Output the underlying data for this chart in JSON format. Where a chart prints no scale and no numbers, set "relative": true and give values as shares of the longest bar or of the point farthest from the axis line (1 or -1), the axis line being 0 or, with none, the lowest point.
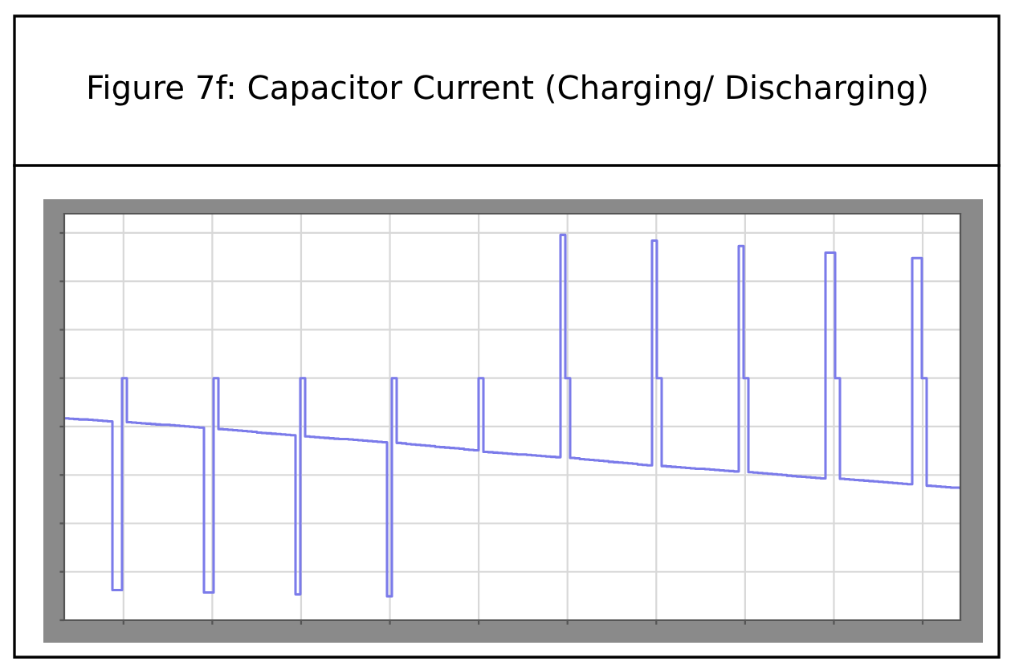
{
  "chart_data": {
    "type": "step",
    "title": "Figure 7f: Capacitor Current (Charging/ Discharging)",
    "relative": true,
    "grid": true,
    "line_style": "solid",
    "marker": "none",
    "categories": [
      null,
      null,
      null,
      null,
      null,
      null,
      null,
      null,
      null,
      null,
      null,
      null,
      null,
      null,
      null,
      null,
      null,
      null,
      null,
      null,
      null,
      null,
      null,
      null,
      null,
      null,
      null,
      null,
      null,
      null,
      null,
      null,
      null,
      null,
      null,
      null,
      null,
      null,
      null,
      null,
      null,
      null,
      null,
      null,
      null,
      null,
      null,
      null,
      null,
      null,
      null,
      null,
      null,
      null,
      null,
      null,
      null,
      null,
      null,
      null,
      null,
      null,
      null,
      null,
      null,
      null,
      null,
      null,
      null,
      null,
      null,
      null,
      null,
      null,
      null,
      null,
      null,
      null,
      null,
      null,
      null,
      null,
      null,
      null,
      null,
      null,
      null,
      null,
      null,
      null,
      null,
      null,
      null,
      null,
      null,
      null,
      null,
      null,
      null,
      null,
      null,
      null,
      null,
      null,
      null,
      null,
      null,
      null,
      null,
      null,
      null,
      null,
      null,
      null,
      null,
      null,
      null,
      null,
      null,
      null,
      null,
      null,
      null,
      null,
      null,
      null,
      null,
      null,
      null,
      null,
      null,
      null,
      null,
      null,
      null,
      null,
      null,
      null,
      null,
      null,
      null,
      null,
      null,
      null,
      null,
      null,
      null,
      null,
      null,
      null,
      null,
      null,
      null,
      null,
      null,
      null,
      null,
      null,
      null,
      null,
      null,
      null,
      null,
      null,
      null,
      null,
      null,
      null,
      null,
      null,
      null,
      null,
      null,
      null,
      null,
      null,
      null,
      null,
      null,
      null,
      null,
      null,
      null,
      null,
      null,
      null,
      null
    ],
    "series": [
      {
        "color": "#7b7bea",
        "values": [
          0.524,
          0.523,
          0.522,
          0.521,
          0.521,
          0.52,
          0.519,
          0.518,
          0.517,
          0.516,
          0.078,
          0.078,
          0.628,
          0.514,
          0.513,
          0.512,
          0.511,
          0.51,
          0.509,
          0.508,
          0.507,
          0.507,
          0.506,
          0.505,
          0.504,
          0.503,
          0.502,
          0.501,
          0.5,
          0.072,
          0.072,
          0.628,
          0.496,
          0.495,
          0.494,
          0.493,
          0.492,
          0.491,
          0.49,
          0.489,
          0.487,
          0.486,
          0.485,
          0.484,
          0.483,
          0.482,
          0.481,
          0.48,
          0.067,
          0.628,
          0.477,
          0.476,
          0.475,
          0.474,
          0.473,
          0.472,
          0.471,
          0.47,
          0.47,
          0.469,
          0.468,
          0.467,
          0.466,
          0.465,
          0.464,
          0.463,
          0.462,
          0.062,
          0.628,
          0.46,
          0.459,
          0.457,
          0.456,
          0.455,
          0.454,
          0.453,
          0.452,
          0.45,
          0.449,
          0.448,
          0.447,
          0.446,
          0.445,
          0.443,
          0.442,
          0.441,
          0.628,
          0.437,
          0.436,
          0.435,
          0.434,
          0.433,
          0.432,
          0.431,
          0.43,
          0.43,
          0.429,
          0.428,
          0.427,
          0.426,
          0.425,
          0.424,
          0.423,
          1.0,
          0.628,
          0.421,
          0.42,
          0.418,
          0.417,
          0.416,
          0.415,
          0.414,
          0.413,
          0.411,
          0.41,
          0.409,
          0.408,
          0.407,
          0.406,
          0.404,
          0.403,
          0.402,
          0.985,
          0.628,
          0.4,
          0.399,
          0.398,
          0.397,
          0.396,
          0.395,
          0.394,
          0.393,
          0.393,
          0.392,
          0.391,
          0.39,
          0.389,
          0.388,
          0.387,
          0.386,
          0.971,
          0.628,
          0.384,
          0.383,
          0.382,
          0.381,
          0.38,
          0.379,
          0.378,
          0.377,
          0.375,
          0.374,
          0.373,
          0.372,
          0.371,
          0.37,
          0.369,
          0.368,
          0.954,
          0.954,
          0.628,
          0.367,
          0.366,
          0.365,
          0.364,
          0.363,
          0.362,
          0.361,
          0.36,
          0.359,
          0.358,
          0.357,
          0.356,
          0.355,
          0.354,
          0.353,
          0.94,
          0.94,
          0.628,
          0.349,
          0.348,
          0.347,
          0.346,
          0.345,
          0.344,
          0.344,
          0.343
        ]
      }
    ]
  }
}
